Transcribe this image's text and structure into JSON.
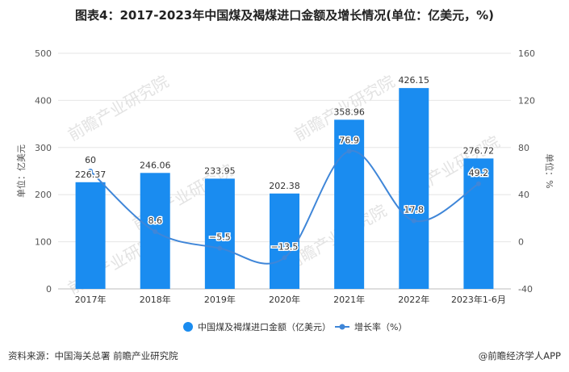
{
  "title": "图表4：2017-2023年中国煤及褐煤进口金额及增长情况(单位：亿美元，%)",
  "source": "资料来源：中国海关总署 前瞻产业研究院",
  "brand": "@前瞻经济学人APP",
  "watermark": "前瞻产业研究院",
  "colors": {
    "bar": "#1a8cf0",
    "line": "#3f86d8",
    "grid": "#e6e6e6",
    "axis_text": "#555555"
  },
  "chart_data": {
    "type": "bar",
    "categories": [
      "2017年",
      "2018年",
      "2019年",
      "2020年",
      "2021年",
      "2022年",
      "2023年1-6月"
    ],
    "series": [
      {
        "name": "中国煤及褐煤进口金额（亿美元）",
        "type": "bar",
        "axis": "left",
        "values": [
          226.37,
          246.06,
          233.95,
          202.38,
          358.96,
          426.15,
          276.72
        ],
        "labels": [
          "226.37",
          "246.06",
          "233.95",
          "202.38",
          "358.96",
          "426.15",
          "276.72"
        ]
      },
      {
        "name": "增长率（%）",
        "type": "line",
        "axis": "right",
        "values": [
          60,
          8.6,
          -5.5,
          -13.5,
          76.9,
          17.8,
          49.2
        ],
        "labels": [
          "60",
          "8.6",
          "−5.5",
          "−13.5",
          "76.9",
          "17.8",
          "49.2"
        ]
      }
    ],
    "y_left": {
      "label": "单位：亿美元",
      "lim": [
        0,
        500
      ],
      "ticks": [
        "0",
        "100",
        "200",
        "300",
        "400",
        "500"
      ]
    },
    "y_right": {
      "label": "单位：%",
      "lim": [
        -40,
        160
      ],
      "ticks": [
        "-40",
        "0",
        "40",
        "80",
        "120",
        "160"
      ]
    },
    "grid": true,
    "legend": "bottom"
  }
}
